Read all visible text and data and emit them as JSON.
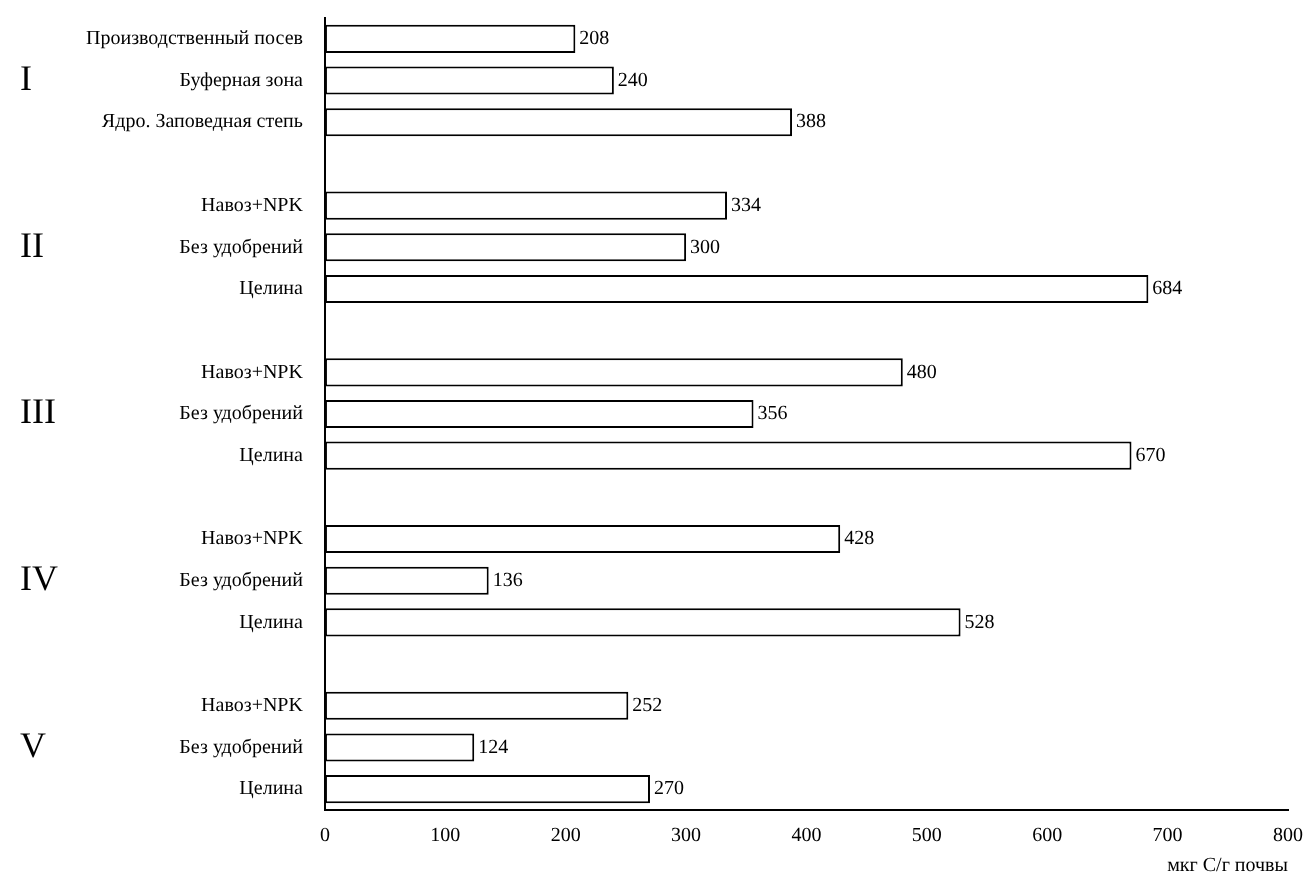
{
  "chart_data": {
    "type": "bar",
    "orientation": "horizontal",
    "xlabel": "мкг С/г почвы",
    "categories": [
      "Производственный посев",
      "Буферная зона",
      "Ядро. Заповедная степь",
      null,
      "Навоз+NPK",
      "Без удобрений",
      "Целина",
      null,
      "Навоз+NPK",
      "Без удобрений",
      "Целина",
      null,
      "Навоз+NPK",
      "Без удобрений",
      "Целина",
      null,
      "Навоз+NPK",
      "Без удобрений",
      "Целина"
    ],
    "values": [
      208,
      240,
      388,
      null,
      334,
      300,
      684,
      null,
      480,
      356,
      670,
      null,
      428,
      136,
      528,
      null,
      252,
      124,
      270
    ],
    "color": "#ffffff",
    "xlim": [
      0,
      800
    ],
    "xticks": [
      0,
      100,
      200,
      300,
      400,
      500,
      600,
      700,
      800
    ],
    "grid": false,
    "legend": false,
    "data_labels": true,
    "annotations": [
      "I",
      "II",
      "III",
      "IV",
      "V"
    ]
  }
}
